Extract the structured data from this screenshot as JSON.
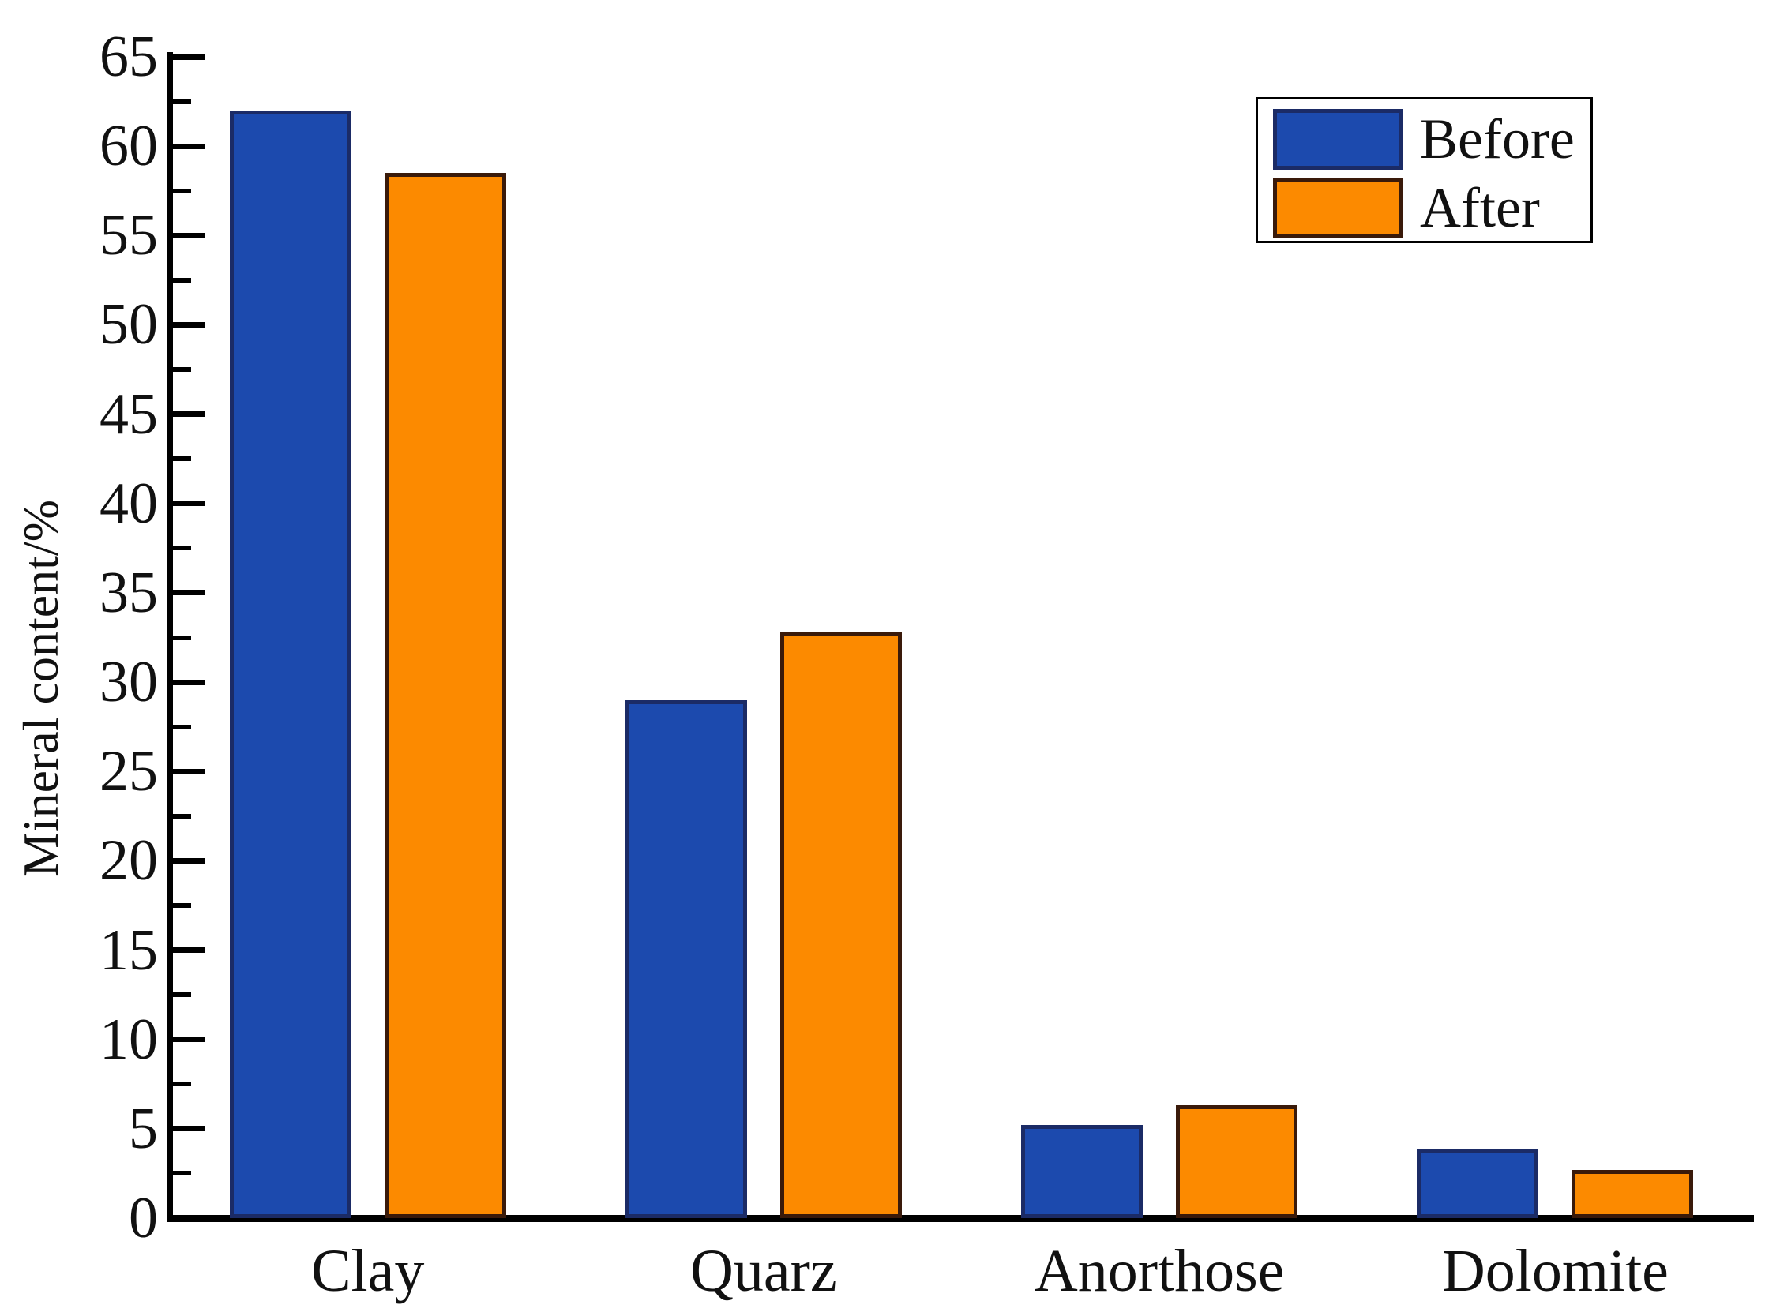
{
  "chart_data": {
    "type": "bar",
    "title": "",
    "categories": [
      "Clay",
      "Quarz",
      "Anorthose",
      "Dolomite"
    ],
    "series": [
      {
        "name": "Before",
        "color": "#1C4AAE",
        "border_color": "#1B2B66",
        "values": [
          62,
          29,
          5.2,
          3.9
        ]
      },
      {
        "name": "After",
        "color": "#FC8A00",
        "border_color": "#3A1A0A",
        "values": [
          58.5,
          32.8,
          6.3,
          2.7
        ]
      }
    ],
    "ylabel": "Mineral content/%",
    "xlabel": "",
    "ylim": [
      0,
      65
    ],
    "ytick_step": 5,
    "yminor_tick_step": 2.5,
    "ytick_labels": [
      "0",
      "5",
      "10",
      "15",
      "20",
      "25",
      "30",
      "35",
      "40",
      "45",
      "50",
      "55",
      "60",
      "65"
    ],
    "grid": false,
    "legend_position": "top-right",
    "axis_color": "#000000",
    "background_color": "#ffffff"
  },
  "legend": {
    "items": [
      {
        "label": "Before"
      },
      {
        "label": "After"
      }
    ]
  }
}
